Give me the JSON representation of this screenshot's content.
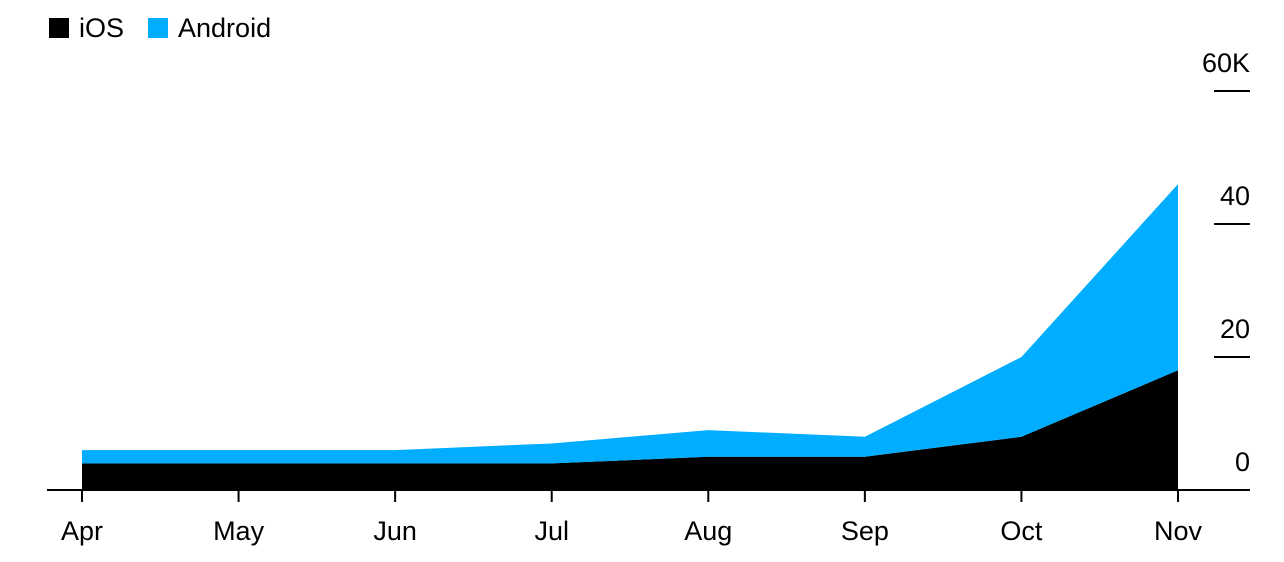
{
  "chart_data": {
    "type": "stacked-area",
    "categories": [
      "Apr",
      "May",
      "Jun",
      "Jul",
      "Aug",
      "Sep",
      "Oct",
      "Nov"
    ],
    "series": [
      {
        "name": "iOS",
        "color": "#000000",
        "values": [
          4,
          4,
          4,
          4,
          5,
          5,
          8,
          18
        ]
      },
      {
        "name": "Android",
        "color": "#00adff",
        "values": [
          2,
          2,
          2,
          3,
          4,
          3,
          12,
          28
        ]
      }
    ],
    "ylim": [
      0,
      60
    ],
    "yticks": [
      0,
      20,
      40,
      {
        "value": 60,
        "label": "60K"
      }
    ],
    "legend": "top-left"
  }
}
